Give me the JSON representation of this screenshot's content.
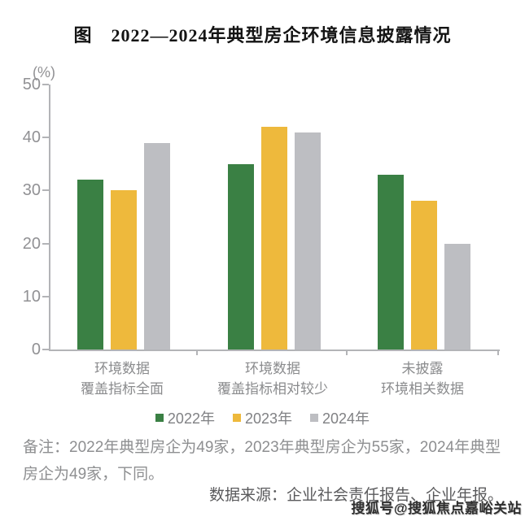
{
  "title": "图　2022—2024年典型房企环境信息披露情况",
  "chart_data": {
    "type": "bar",
    "title": "图 2022—2024年典型房企环境信息披露情况",
    "unit_label": "(%)",
    "categories": [
      [
        "环境数据",
        "覆盖指标全面"
      ],
      [
        "环境数据",
        "覆盖指标相对较少"
      ],
      [
        "未披露",
        "环境相关数据"
      ]
    ],
    "series": [
      {
        "name": "2022年",
        "color": "#3a8044",
        "values": [
          32,
          35,
          33
        ]
      },
      {
        "name": "2023年",
        "color": "#eeb93c",
        "values": [
          30,
          42,
          28
        ]
      },
      {
        "name": "2024年",
        "color": "#bdbec2",
        "values": [
          39,
          41,
          20
        ]
      }
    ],
    "ylim": [
      0,
      50
    ],
    "yticks": [
      0,
      10,
      20,
      30,
      40,
      50
    ],
    "grid": false,
    "legend_position": "bottom"
  },
  "footer": {
    "remark": "备注：2022年典型房企为49家，2023年典型房企为55家，2024年典型房企为49家，下同。",
    "source": "数据来源：企业社会责任报告、企业年报。",
    "watermark": "搜狐号@搜狐焦点嘉峪关站"
  }
}
